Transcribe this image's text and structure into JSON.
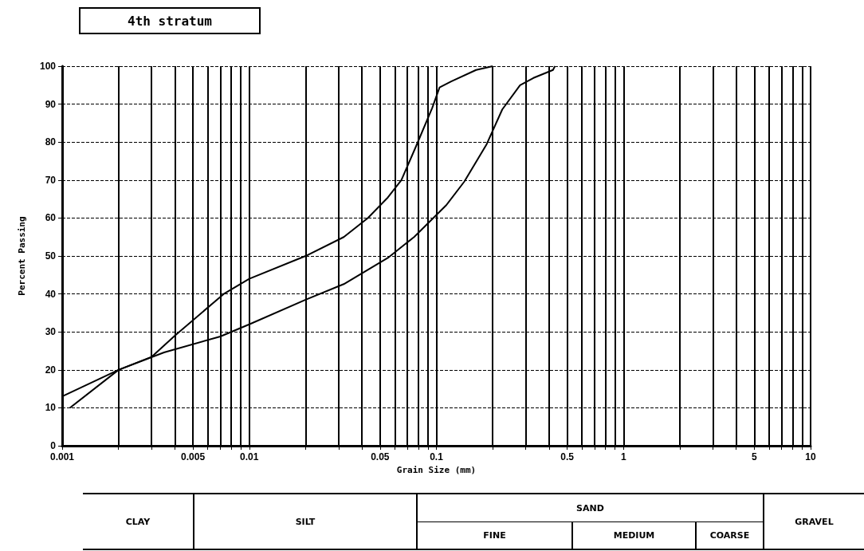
{
  "chart_data": {
    "type": "line",
    "title": "4th stratum",
    "xlabel": "Grain Size (mm)",
    "ylabel": "Percent Passing",
    "series": [
      {
        "color": "#000000",
        "x": [
          0.0011,
          0.002,
          0.003,
          0.004,
          0.0073,
          0.01,
          0.02,
          0.032,
          0.043,
          0.055,
          0.065,
          0.078,
          0.095,
          0.104,
          0.12,
          0.163,
          0.2
        ],
        "values": [
          10,
          20,
          23.4,
          29,
          40,
          44,
          50,
          55,
          60,
          65.4,
          70,
          79,
          89,
          94.4,
          96,
          99,
          100
        ]
      },
      {
        "color": "#000000",
        "x": [
          0.001,
          0.002,
          0.0035,
          0.007,
          0.01,
          0.02,
          0.032,
          0.055,
          0.076,
          0.113,
          0.141,
          0.185,
          0.225,
          0.28,
          0.33,
          0.42,
          0.43
        ],
        "values": [
          13,
          20,
          24.6,
          28.8,
          32,
          38.5,
          42.6,
          49.5,
          55,
          63.4,
          69.6,
          79.3,
          88.6,
          95,
          96.9,
          99,
          100
        ]
      }
    ],
    "log": "x",
    "xlim": [
      0.001,
      10
    ],
    "xticks": [
      0.001,
      {
        "value": 0.002,
        "label": null
      },
      {
        "value": 0.003,
        "label": null
      },
      {
        "value": 0.004,
        "label": null
      },
      0.005,
      {
        "value": 0.006,
        "label": null
      },
      {
        "value": 0.007,
        "label": null
      },
      {
        "value": 0.008,
        "label": null
      },
      {
        "value": 0.009,
        "label": null
      },
      0.01,
      {
        "value": 0.02,
        "label": null
      },
      {
        "value": 0.03,
        "label": null
      },
      {
        "value": 0.04,
        "label": null
      },
      0.05,
      {
        "value": 0.06,
        "label": null
      },
      {
        "value": 0.07,
        "label": null
      },
      {
        "value": 0.08,
        "label": null
      },
      {
        "value": 0.09,
        "label": null
      },
      0.1,
      {
        "value": 0.2,
        "label": null
      },
      {
        "value": 0.3,
        "label": null
      },
      {
        "value": 0.4,
        "label": null
      },
      0.5,
      {
        "value": 0.6,
        "label": null
      },
      {
        "value": 0.7,
        "label": null
      },
      {
        "value": 0.8,
        "label": null
      },
      {
        "value": 0.9,
        "label": null
      },
      1,
      {
        "value": 2,
        "label": null
      },
      {
        "value": 3,
        "label": null
      },
      {
        "value": 4,
        "label": null
      },
      5,
      {
        "value": 6,
        "label": null
      },
      {
        "value": 7,
        "label": null
      },
      {
        "value": 8,
        "label": null
      },
      {
        "value": 9,
        "label": null
      },
      10
    ],
    "ylim": [
      0,
      100
    ],
    "yticks": [
      0,
      10,
      20,
      30,
      40,
      50,
      60,
      70,
      80,
      90,
      100
    ],
    "grid": true,
    "marker": "none",
    "line_style": "solid",
    "annotations": [
      "CLAY",
      "SILT",
      "SAND",
      "FINE",
      "MEDIUM",
      "COARSE",
      "GRAVEL"
    ]
  }
}
